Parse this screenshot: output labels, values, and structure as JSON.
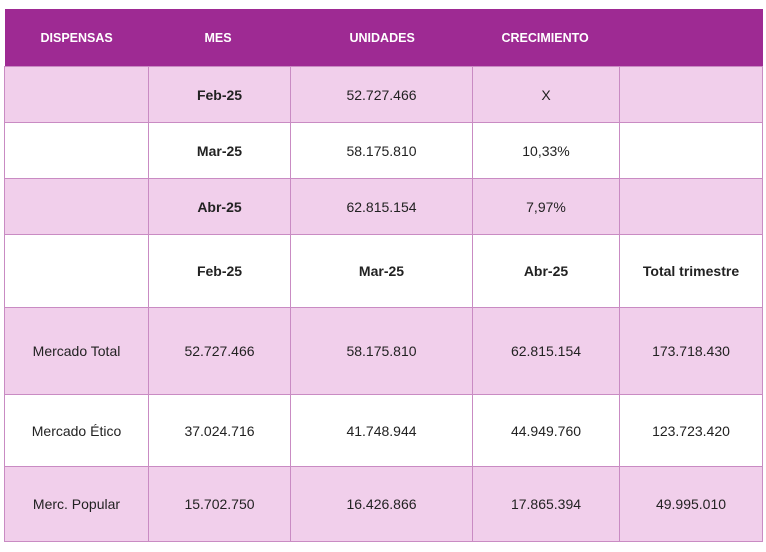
{
  "header": [
    "DISPENSAS",
    "MES",
    "UNIDADES",
    "CRECIMIENTO",
    ""
  ],
  "monthly_rows": [
    {
      "dispensas": "",
      "mes": "Feb-25",
      "unidades": "52.727.466",
      "crecimiento": "X",
      "extra": ""
    },
    {
      "dispensas": "",
      "mes": "Mar-25",
      "unidades": "58.175.810",
      "crecimiento": "10,33%",
      "extra": ""
    },
    {
      "dispensas": "",
      "mes": "Abr-25",
      "unidades": "62.815.154",
      "crecimiento": "7,97%",
      "extra": ""
    }
  ],
  "sub_header": [
    "",
    "Feb-25",
    "Mar-25",
    "Abr-25",
    "Total trimestre"
  ],
  "market_rows": [
    {
      "name": "Mercado Total",
      "feb": "52.727.466",
      "mar": "58.175.810",
      "abr": "62.815.154",
      "total": "173.718.430"
    },
    {
      "name": "Mercado Ético",
      "feb": "37.024.716",
      "mar": "41.748.944",
      "abr": "44.949.760",
      "total": "123.723.420"
    },
    {
      "name": "Merc. Popular",
      "feb": "15.702.750",
      "mar": "16.426.866",
      "abr": "17.865.394",
      "total": "49.995.010"
    }
  ]
}
